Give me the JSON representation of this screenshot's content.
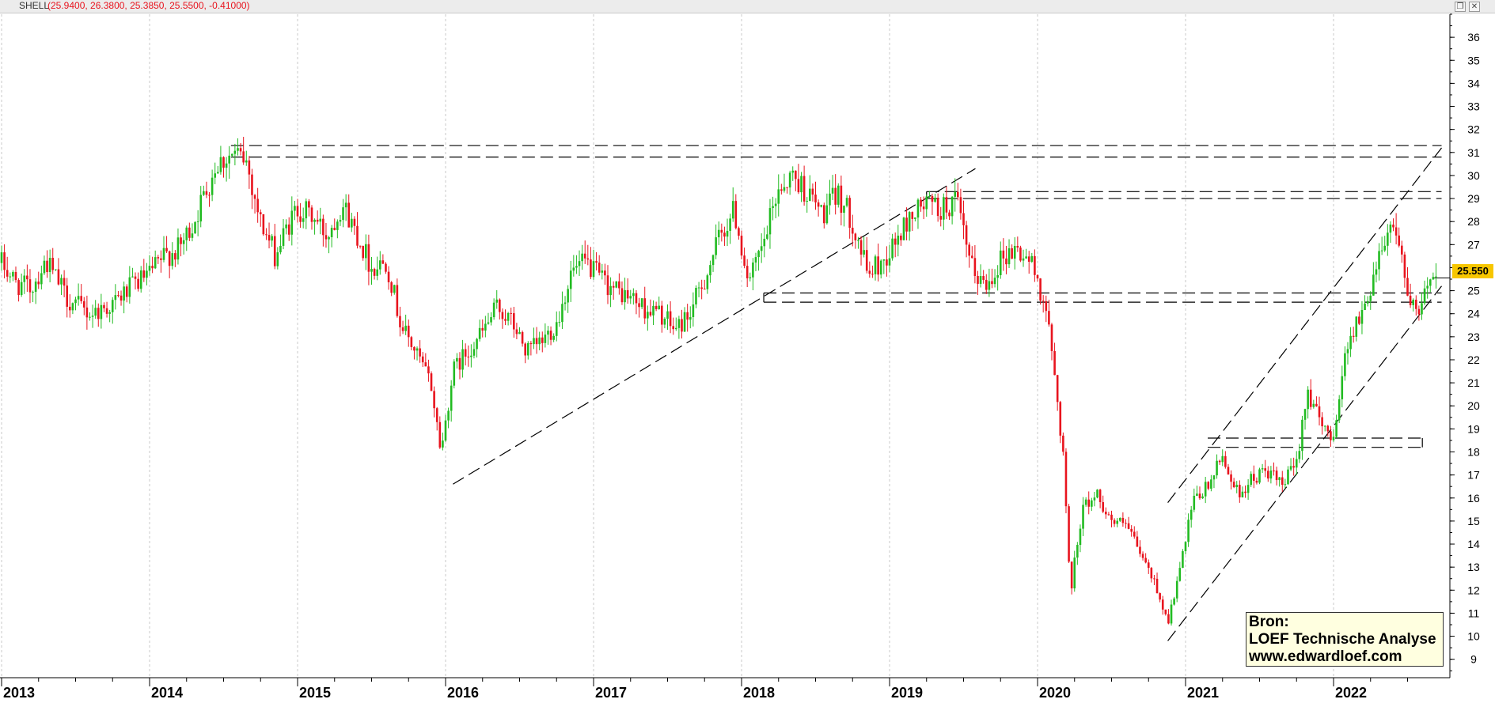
{
  "window": {
    "ticker": "SHELL",
    "ohlc_text": "(25.9400, 26.3800, 25.3850, 25.5500, -0.41000)",
    "buttons": [
      "restore-icon",
      "close-icon"
    ],
    "close_glyph": "✕",
    "restore_glyph": "❐"
  },
  "colors": {
    "up": "#22bb22",
    "down": "#e8141e",
    "grid": "#c8c8c8",
    "lines": "#000000",
    "ohlc_text": "#e8141e",
    "badge": "#f7c600"
  },
  "chart_data": {
    "type": "candlestick",
    "x_tick_labels": [
      "2013",
      "2014",
      "2015",
      "2016",
      "2017",
      "2018",
      "2019",
      "2020",
      "2021",
      "2022"
    ],
    "y_tick_labels": [
      "9",
      "10",
      "11",
      "12",
      "13",
      "14",
      "15",
      "16",
      "17",
      "18",
      "19",
      "20",
      "21",
      "22",
      "23",
      "24",
      "25",
      "26",
      "27",
      "28",
      "29",
      "30",
      "31",
      "32",
      "33",
      "34",
      "35",
      "36"
    ],
    "xlim": [
      2013.0,
      2022.75
    ],
    "ylim": [
      8.2,
      37.0
    ],
    "grid": true,
    "y_axis_position": "right",
    "last_price": "25.550",
    "price_path": [
      [
        2013.0,
        26.2
      ],
      [
        2013.1,
        25.3
      ],
      [
        2013.2,
        25.1
      ],
      [
        2013.3,
        26.3
      ],
      [
        2013.45,
        24.6
      ],
      [
        2013.6,
        24.0
      ],
      [
        2013.75,
        24.4
      ],
      [
        2013.9,
        25.3
      ],
      [
        2014.0,
        25.7
      ],
      [
        2014.1,
        26.5
      ],
      [
        2014.2,
        26.8
      ],
      [
        2014.3,
        28.0
      ],
      [
        2014.45,
        30.5
      ],
      [
        2014.55,
        30.9
      ],
      [
        2014.65,
        30.7
      ],
      [
        2014.75,
        28.0
      ],
      [
        2014.85,
        26.5
      ],
      [
        2014.92,
        27.6
      ],
      [
        2015.0,
        28.6
      ],
      [
        2015.1,
        28.2
      ],
      [
        2015.2,
        27.4
      ],
      [
        2015.3,
        28.8
      ],
      [
        2015.4,
        27.5
      ],
      [
        2015.5,
        26.0
      ],
      [
        2015.6,
        26.3
      ],
      [
        2015.7,
        23.5
      ],
      [
        2015.8,
        22.3
      ],
      [
        2015.9,
        21.0
      ],
      [
        2015.97,
        18.0
      ],
      [
        2016.05,
        21.5
      ],
      [
        2016.15,
        22.4
      ],
      [
        2016.25,
        23.2
      ],
      [
        2016.35,
        24.3
      ],
      [
        2016.45,
        23.6
      ],
      [
        2016.55,
        22.3
      ],
      [
        2016.65,
        22.8
      ],
      [
        2016.75,
        23.6
      ],
      [
        2016.85,
        25.8
      ],
      [
        2016.95,
        26.2
      ],
      [
        2017.05,
        25.5
      ],
      [
        2017.15,
        25.0
      ],
      [
        2017.25,
        24.7
      ],
      [
        2017.35,
        24.2
      ],
      [
        2017.45,
        24.0
      ],
      [
        2017.55,
        23.3
      ],
      [
        2017.65,
        24.0
      ],
      [
        2017.75,
        25.5
      ],
      [
        2017.85,
        27.3
      ],
      [
        2017.95,
        28.5
      ],
      [
        2018.05,
        25.3
      ],
      [
        2018.15,
        27.0
      ],
      [
        2018.25,
        29.5
      ],
      [
        2018.35,
        30.0
      ],
      [
        2018.45,
        29.2
      ],
      [
        2018.55,
        28.3
      ],
      [
        2018.65,
        29.2
      ],
      [
        2018.75,
        28.0
      ],
      [
        2018.85,
        25.8
      ],
      [
        2018.95,
        26.2
      ],
      [
        2019.05,
        27.2
      ],
      [
        2019.15,
        28.3
      ],
      [
        2019.25,
        28.8
      ],
      [
        2019.35,
        28.5
      ],
      [
        2019.45,
        28.9
      ],
      [
        2019.55,
        26.0
      ],
      [
        2019.65,
        25.2
      ],
      [
        2019.75,
        26.4
      ],
      [
        2019.85,
        26.8
      ],
      [
        2019.95,
        26.3
      ],
      [
        2020.05,
        24.5
      ],
      [
        2020.12,
        21.0
      ],
      [
        2020.18,
        17.5
      ],
      [
        2020.22,
        11.8
      ],
      [
        2020.3,
        15.5
      ],
      [
        2020.4,
        16.2
      ],
      [
        2020.5,
        15.0
      ],
      [
        2020.6,
        14.8
      ],
      [
        2020.7,
        13.5
      ],
      [
        2020.8,
        12.2
      ],
      [
        2020.88,
        10.6
      ],
      [
        2020.95,
        12.5
      ],
      [
        2021.05,
        15.8
      ],
      [
        2021.15,
        16.5
      ],
      [
        2021.25,
        17.8
      ],
      [
        2021.35,
        16.2
      ],
      [
        2021.45,
        16.8
      ],
      [
        2021.55,
        17.2
      ],
      [
        2021.65,
        16.5
      ],
      [
        2021.75,
        17.5
      ],
      [
        2021.82,
        20.8
      ],
      [
        2021.92,
        19.0
      ],
      [
        2022.0,
        18.8
      ],
      [
        2022.1,
        23.0
      ],
      [
        2022.2,
        24.0
      ],
      [
        2022.3,
        26.5
      ],
      [
        2022.38,
        28.0
      ],
      [
        2022.45,
        27.2
      ],
      [
        2022.5,
        24.5
      ],
      [
        2022.58,
        23.8
      ],
      [
        2022.65,
        25.8
      ],
      [
        2022.7,
        25.55
      ]
    ],
    "annotations": [
      {
        "kind": "line",
        "from": [
          2014.55,
          31.3
        ],
        "to": [
          2022.73,
          31.3
        ]
      },
      {
        "kind": "line",
        "from": [
          2014.55,
          30.8
        ],
        "to": [
          2022.73,
          30.8
        ]
      },
      {
        "kind": "line",
        "from": [
          2019.25,
          29.3
        ],
        "to": [
          2022.73,
          29.3
        ]
      },
      {
        "kind": "line",
        "from": [
          2019.25,
          29.0
        ],
        "to": [
          2022.73,
          29.0
        ]
      },
      {
        "kind": "line",
        "from": [
          2019.25,
          28.9
        ],
        "to": [
          2019.25,
          29.3
        ]
      },
      {
        "kind": "line",
        "from": [
          2018.15,
          24.9
        ],
        "to": [
          2022.73,
          24.9
        ]
      },
      {
        "kind": "line",
        "from": [
          2018.15,
          24.5
        ],
        "to": [
          2022.73,
          24.5
        ]
      },
      {
        "kind": "line",
        "from": [
          2018.15,
          24.5
        ],
        "to": [
          2018.15,
          24.9
        ]
      },
      {
        "kind": "line",
        "from": [
          2021.15,
          18.6
        ],
        "to": [
          2022.6,
          18.6
        ]
      },
      {
        "kind": "line",
        "from": [
          2021.15,
          18.2
        ],
        "to": [
          2022.6,
          18.2
        ]
      },
      {
        "kind": "line",
        "from": [
          2022.6,
          18.2
        ],
        "to": [
          2022.6,
          18.6
        ]
      },
      {
        "kind": "line",
        "from": [
          2016.05,
          16.6
        ],
        "to": [
          2019.58,
          30.3
        ]
      },
      {
        "kind": "line",
        "from": [
          2020.88,
          9.8
        ],
        "to": [
          2022.73,
          25.2
        ]
      },
      {
        "kind": "line",
        "from": [
          2020.88,
          15.8
        ],
        "to": [
          2022.73,
          31.2
        ]
      }
    ]
  },
  "source_box": {
    "line1": "Bron:",
    "line2": "LOEF Technische Analyse",
    "line3": "www.edwardloef.com"
  }
}
